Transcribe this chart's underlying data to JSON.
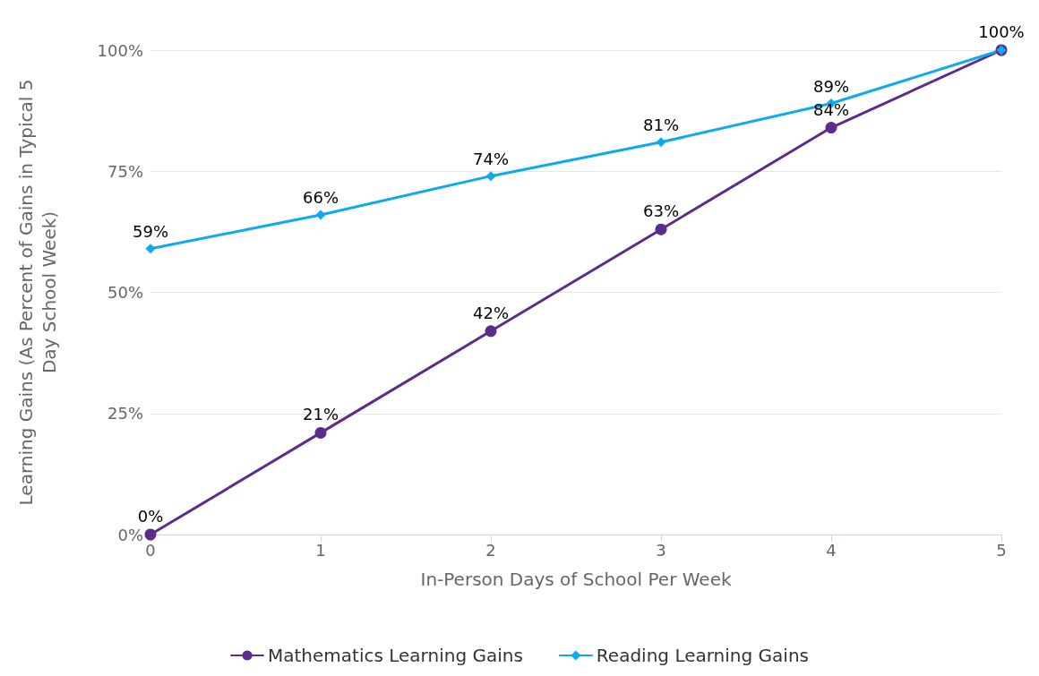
{
  "chart_data": {
    "type": "line",
    "xlabel": "In-Person Days of School Per Week",
    "ylabel": "Learning Gains (As Percent of Gains in Typical 5 Day School Week)",
    "x": [
      0,
      1,
      2,
      3,
      4,
      5
    ],
    "series": [
      {
        "name": "Mathematics Learning Gains",
        "color": "#5b2c8c",
        "marker": "circle",
        "values": [
          0,
          21,
          42,
          63,
          84,
          100
        ],
        "value_labels": [
          "0%",
          "21%",
          "42%",
          "63%",
          "84%",
          "100%"
        ]
      },
      {
        "name": "Reading Learning Gains",
        "color": "#0eaaf0",
        "marker": "diamond",
        "values": [
          59,
          66,
          74,
          81,
          89,
          100
        ],
        "value_labels": [
          "59%",
          "66%",
          "74%",
          "81%",
          "89%",
          null
        ]
      }
    ],
    "xlim": [
      0,
      5
    ],
    "xticks": [
      0,
      1,
      2,
      3,
      4,
      5
    ],
    "ylim": [
      0,
      100
    ],
    "yticks": [
      {
        "value": 0,
        "label": "0%"
      },
      {
        "value": 25,
        "label": "25%"
      },
      {
        "value": 50,
        "label": "50%"
      },
      {
        "value": 75,
        "label": "75%"
      },
      {
        "value": 100,
        "label": "100%"
      }
    ],
    "grid": "y",
    "legend": "bottom",
    "line_style": "solid"
  }
}
